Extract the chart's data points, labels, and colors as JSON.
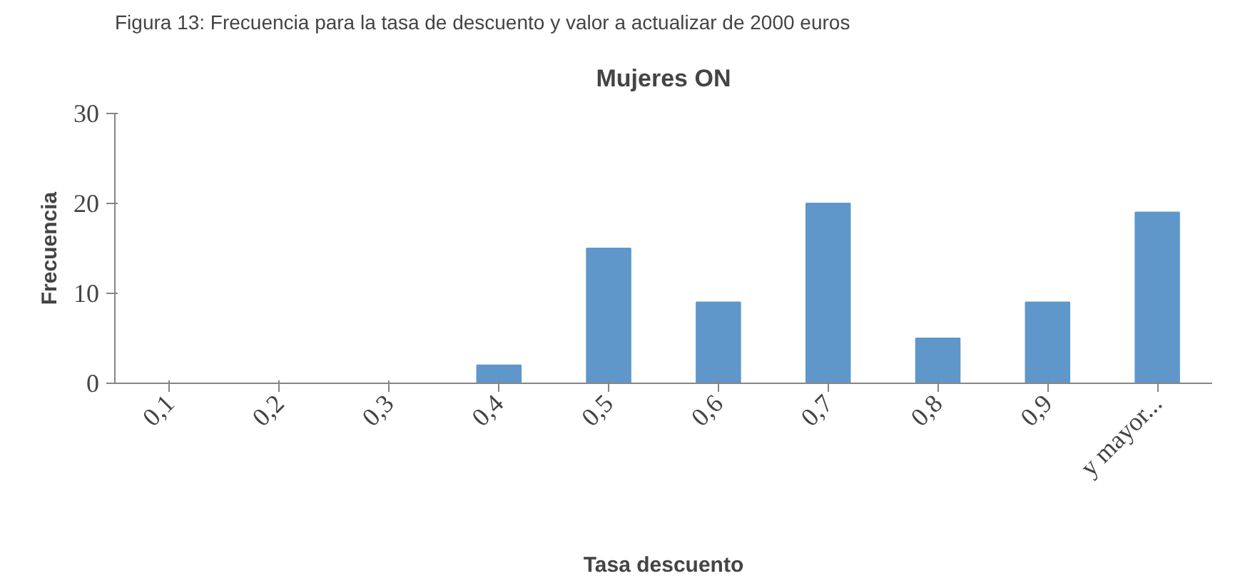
{
  "chart_data": {
    "type": "bar",
    "title": "Mujeres ON",
    "xlabel": "Tasa descuento",
    "ylabel": "Frecuencia",
    "annotations": [
      "Figura 13: Frecuencia para la tasa de descuento y valor a actualizar de 2000 euros"
    ],
    "categories": [
      "0,1",
      "0,2",
      "0,3",
      "0,4",
      "0,5",
      "0,6",
      "0,7",
      "0,8",
      "0,9",
      "y mayor..."
    ],
    "values": [
      0,
      0,
      0,
      2,
      15,
      9,
      20,
      5,
      9,
      19
    ],
    "color": "#5f97ca",
    "ylim": [
      0,
      30
    ],
    "yticks": [
      0,
      10,
      20,
      30
    ],
    "grid": false
  }
}
